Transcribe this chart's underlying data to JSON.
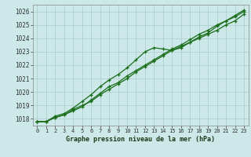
{
  "title": "Graphe pression niveau de la mer (hPa)",
  "background_color": "#cce8e8",
  "plot_bg_color": "#cce8e8",
  "grid_color": "#aacccc",
  "line_color": "#1a6e1a",
  "ylim": [
    1017.5,
    1026.5
  ],
  "yticks": [
    1018,
    1019,
    1020,
    1021,
    1022,
    1023,
    1024,
    1025,
    1026
  ],
  "hours": [
    0,
    1,
    2,
    3,
    4,
    5,
    6,
    7,
    8,
    9,
    10,
    11,
    12,
    13,
    14,
    15,
    16,
    17,
    18,
    19,
    20,
    21,
    22,
    23
  ],
  "line1": [
    1017.8,
    1017.8,
    1018.1,
    1018.3,
    1018.7,
    1019.0,
    1019.3,
    1019.8,
    1020.2,
    1020.6,
    1021.0,
    1021.5,
    1021.9,
    1022.3,
    1022.7,
    1023.1,
    1023.3,
    1023.7,
    1024.0,
    1024.3,
    1024.6,
    1025.0,
    1025.3,
    1025.8
  ],
  "line2": [
    1017.8,
    1017.8,
    1018.2,
    1018.4,
    1018.8,
    1019.3,
    1019.8,
    1020.4,
    1020.9,
    1021.3,
    1021.8,
    1022.4,
    1023.0,
    1023.3,
    1023.2,
    1023.1,
    1023.4,
    1023.7,
    1024.1,
    1024.4,
    1024.9,
    1025.3,
    1025.7,
    1026.1
  ],
  "line3": [
    1017.8,
    1017.8,
    1018.1,
    1018.3,
    1018.6,
    1018.9,
    1019.4,
    1019.9,
    1020.4,
    1020.7,
    1021.2,
    1021.6,
    1022.0,
    1022.4,
    1022.8,
    1023.2,
    1023.5,
    1023.9,
    1024.3,
    1024.6,
    1025.0,
    1025.3,
    1025.6,
    1026.0
  ]
}
